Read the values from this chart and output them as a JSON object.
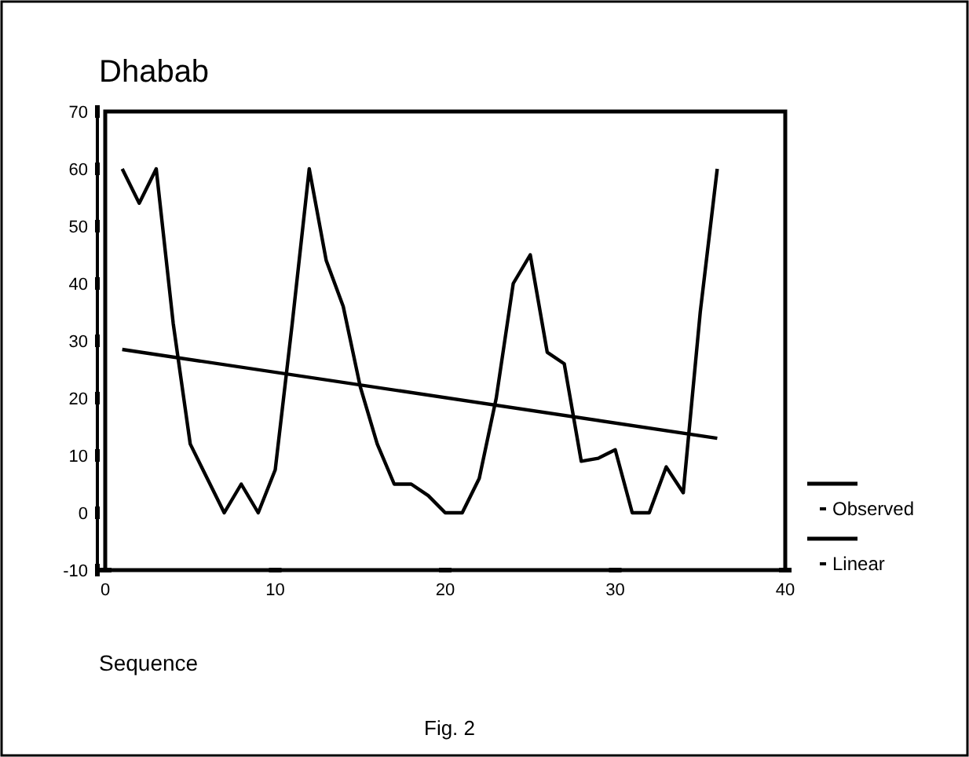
{
  "chart_data": {
    "type": "line",
    "title": "Dhabab",
    "xlabel": "Sequence",
    "annotations": [
      "Fig. 2"
    ],
    "xlim": [
      0,
      40
    ],
    "xticks": [
      0,
      10,
      20,
      30,
      40
    ],
    "ylim": [
      -10,
      70
    ],
    "yticks": [
      -10,
      0,
      10,
      20,
      30,
      40,
      50,
      60,
      70
    ],
    "grid": false,
    "legend": "right",
    "marker": "none",
    "line_style": "solid",
    "series": [
      {
        "name": "Observed",
        "color": "#000000",
        "x": [
          1,
          2,
          3,
          4,
          5,
          6,
          7,
          8,
          9,
          10,
          11,
          12,
          13,
          14,
          15,
          16,
          17,
          18,
          19,
          20,
          21,
          22,
          23,
          24,
          25,
          26,
          27,
          28,
          29,
          30,
          31,
          32,
          33,
          34,
          35,
          36
        ],
        "values": [
          60,
          54,
          60,
          33,
          12,
          6,
          0,
          5,
          0,
          7.5,
          33,
          60,
          44,
          36,
          22,
          12,
          5,
          5,
          3,
          0,
          0,
          6,
          20,
          40,
          45,
          28,
          26,
          9,
          9.5,
          11,
          0,
          0,
          8,
          3.5,
          35,
          60
        ]
      },
      {
        "name": "Linear",
        "color": "#000000",
        "x": [
          1,
          36
        ],
        "values": [
          28.5,
          13
        ]
      }
    ]
  }
}
